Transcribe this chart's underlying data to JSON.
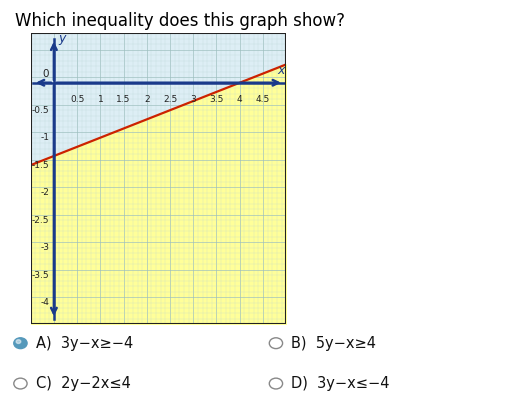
{
  "title": "Which inequality does this graph show?",
  "title_fontsize": 12,
  "title_color": "#000000",
  "graph_xlim": [
    -0.5,
    5.0
  ],
  "graph_ylim": [
    -4.4,
    0.9
  ],
  "x_tick_vals": [
    0.5,
    1,
    1.5,
    2,
    2.5,
    3,
    3.5,
    4,
    4.5
  ],
  "x_tick_labels": [
    "0.5",
    "1",
    "1.5",
    "2",
    "2.5",
    "3",
    "3.5",
    "4",
    "4.5"
  ],
  "y_tick_vals": [
    -0.5,
    -1,
    -1.5,
    -2,
    -2.5,
    -3,
    -3.5,
    -4
  ],
  "y_tick_labels": [
    "-0.5",
    "-1",
    "-1.5",
    "-2",
    "-2.5",
    "-3",
    "-3.5",
    "-4"
  ],
  "line_slope": 0.33333,
  "line_intercept": -1.33333,
  "line_color": "#cc2200",
  "line_width": 1.6,
  "shade_color": "#ffff99",
  "shade_alpha": 1.0,
  "grid_color_major": "#9dbfbf",
  "grid_color_minor": "#b8d4d4",
  "grid_alpha": 0.8,
  "axis_color": "#1a3a8a",
  "plot_bg_color": "#ddeef5",
  "choice_A_text": "A)  3y−x≥−4",
  "choice_B_text": "B)  5y−x≥4",
  "choice_C_text": "C)  2y−2x≤4",
  "choice_D_text": "D)  3y−x≤−4",
  "selected_circle_color": "#5599bb",
  "unselected_circle_color": "#888888",
  "xlabel": "x",
  "ylabel": "y"
}
